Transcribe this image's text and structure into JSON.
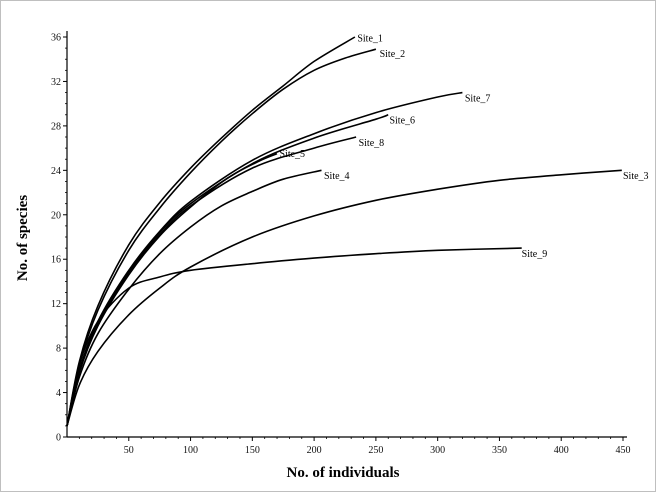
{
  "chart_data": {
    "type": "line",
    "title": "",
    "xlabel": "No. of individuals",
    "ylabel": "No. of species",
    "xlim": [
      0,
      450
    ],
    "ylim": [
      0,
      36
    ],
    "x_ticks": [
      50,
      100,
      150,
      200,
      250,
      300,
      350,
      400,
      450
    ],
    "y_ticks": [
      0,
      4,
      8,
      12,
      16,
      20,
      24,
      28,
      32,
      36
    ],
    "grid": false,
    "legend": "none (curves labeled at their end points)",
    "series": [
      {
        "name": "Site_1",
        "points": [
          [
            0,
            1
          ],
          [
            10,
            6.8
          ],
          [
            25,
            11.8
          ],
          [
            50,
            17.3
          ],
          [
            75,
            21.1
          ],
          [
            100,
            24.2
          ],
          [
            125,
            26.9
          ],
          [
            150,
            29.4
          ],
          [
            175,
            31.6
          ],
          [
            200,
            33.8
          ],
          [
            233,
            36
          ]
        ]
      },
      {
        "name": "Site_2",
        "points": [
          [
            0,
            1
          ],
          [
            10,
            6.5
          ],
          [
            25,
            11.4
          ],
          [
            50,
            16.8
          ],
          [
            75,
            20.6
          ],
          [
            100,
            23.8
          ],
          [
            125,
            26.6
          ],
          [
            150,
            29.1
          ],
          [
            175,
            31.3
          ],
          [
            200,
            33.0
          ],
          [
            225,
            34.1
          ],
          [
            250,
            34.9
          ]
        ]
      },
      {
        "name": "Site_7",
        "points": [
          [
            0,
            1
          ],
          [
            10,
            6
          ],
          [
            25,
            10.4
          ],
          [
            50,
            15
          ],
          [
            75,
            18.5
          ],
          [
            100,
            21.2
          ],
          [
            150,
            24.9
          ],
          [
            200,
            27.3
          ],
          [
            250,
            29.2
          ],
          [
            300,
            30.6
          ],
          [
            320,
            31
          ]
        ]
      },
      {
        "name": "Site_6",
        "points": [
          [
            0,
            1
          ],
          [
            10,
            6
          ],
          [
            25,
            10.3
          ],
          [
            50,
            14.9
          ],
          [
            75,
            18.4
          ],
          [
            100,
            21
          ],
          [
            150,
            24.6
          ],
          [
            200,
            26.9
          ],
          [
            250,
            28.6
          ],
          [
            260,
            29
          ]
        ]
      },
      {
        "name": "Site_8",
        "points": [
          [
            0,
            1
          ],
          [
            10,
            6
          ],
          [
            25,
            10.2
          ],
          [
            50,
            14.8
          ],
          [
            75,
            18.2
          ],
          [
            100,
            20.8
          ],
          [
            150,
            24.2
          ],
          [
            200,
            26
          ],
          [
            234,
            27
          ]
        ]
      },
      {
        "name": "Site_5",
        "points": [
          [
            0,
            1
          ],
          [
            10,
            5.8
          ],
          [
            25,
            10
          ],
          [
            50,
            14.6
          ],
          [
            75,
            18.1
          ],
          [
            100,
            20.7
          ],
          [
            130,
            23.3
          ],
          [
            155,
            24.8
          ],
          [
            170,
            25.5
          ]
        ]
      },
      {
        "name": "Site_4",
        "points": [
          [
            0,
            1
          ],
          [
            10,
            5.4
          ],
          [
            25,
            9.3
          ],
          [
            50,
            13.3
          ],
          [
            75,
            16.5
          ],
          [
            100,
            18.9
          ],
          [
            125,
            20.8
          ],
          [
            150,
            22.1
          ],
          [
            175,
            23.2
          ],
          [
            206,
            24
          ]
        ]
      },
      {
        "name": "Site_3",
        "points": [
          [
            0,
            1
          ],
          [
            10,
            4.7
          ],
          [
            25,
            7.7
          ],
          [
            50,
            11
          ],
          [
            75,
            13.4
          ],
          [
            100,
            15.3
          ],
          [
            150,
            18
          ],
          [
            200,
            19.9
          ],
          [
            250,
            21.3
          ],
          [
            300,
            22.3
          ],
          [
            350,
            23.1
          ],
          [
            400,
            23.6
          ],
          [
            449,
            24
          ]
        ]
      },
      {
        "name": "Site_9",
        "points": [
          [
            0,
            1
          ],
          [
            10,
            6.5
          ],
          [
            25,
            10.4
          ],
          [
            50,
            13.4
          ],
          [
            75,
            14.4
          ],
          [
            100,
            15
          ],
          [
            150,
            15.6
          ],
          [
            200,
            16.1
          ],
          [
            250,
            16.5
          ],
          [
            300,
            16.8
          ],
          [
            368,
            17
          ]
        ]
      }
    ],
    "labels": [
      {
        "text": "Site_1",
        "x": 235,
        "y": 35.6
      },
      {
        "text": "Site_2",
        "x": 253,
        "y": 34.2
      },
      {
        "text": "Site_7",
        "x": 322,
        "y": 30.2
      },
      {
        "text": "Site_6",
        "x": 261,
        "y": 28.2
      },
      {
        "text": "Site_8",
        "x": 236,
        "y": 26.2
      },
      {
        "text": "Site_5",
        "x": 172,
        "y": 25.2
      },
      {
        "text": "Site_4",
        "x": 208,
        "y": 23.2
      },
      {
        "text": "Site_3",
        "x": 450,
        "y": 23.2
      },
      {
        "text": "Site_9",
        "x": 368,
        "y": 16.2
      }
    ],
    "line_color": "#000000"
  }
}
